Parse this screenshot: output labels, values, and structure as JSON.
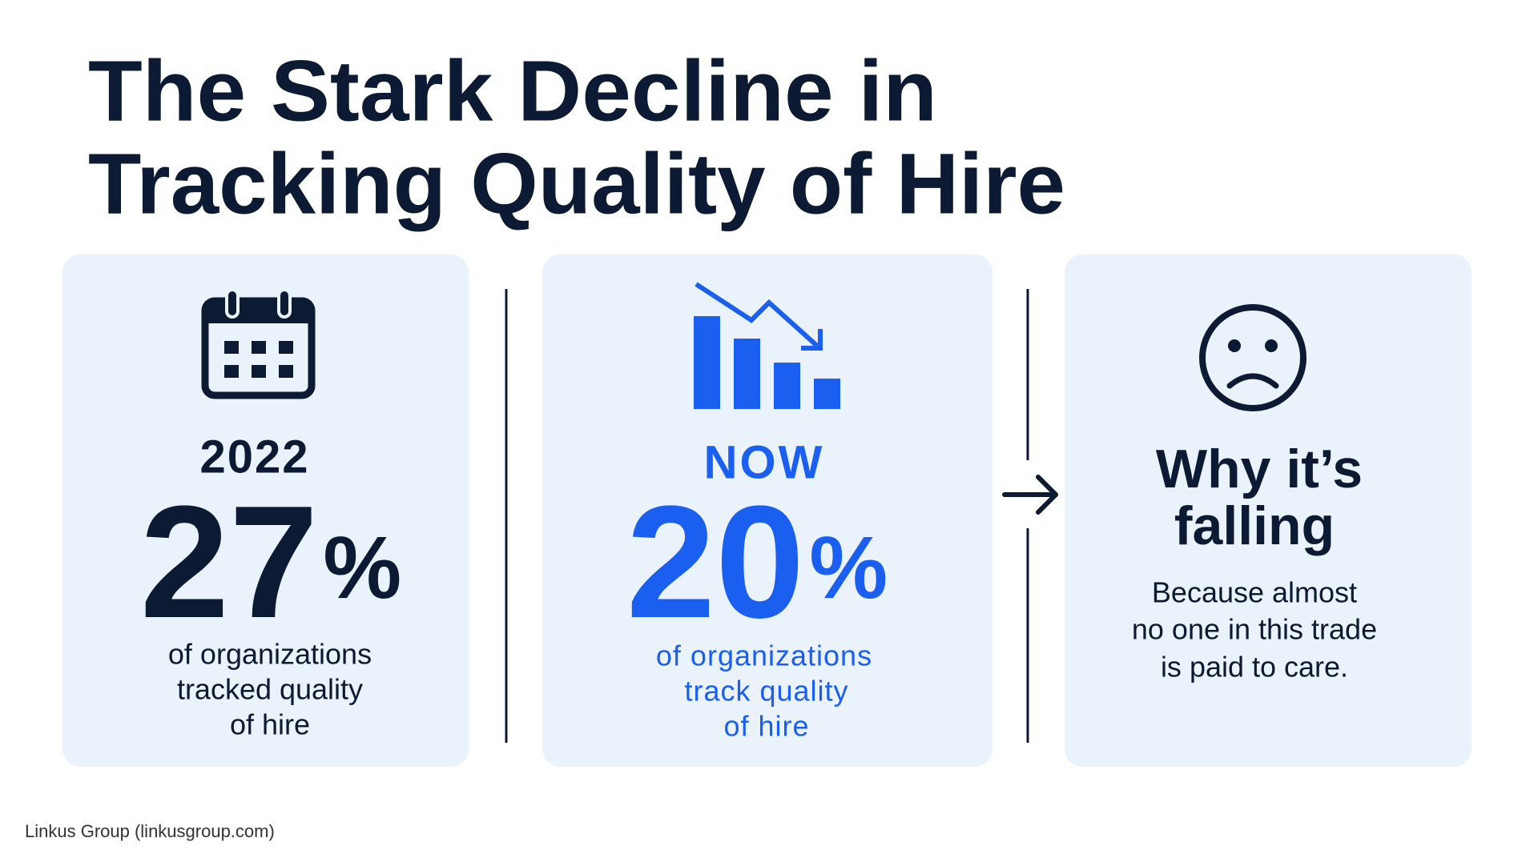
{
  "header": {
    "title_lines": [
      "The Stark Decline in",
      "Tracking Quality of Hire"
    ]
  },
  "cards": [
    {
      "label": "2022",
      "value": "27",
      "unit": "%",
      "description_lines": [
        "of organizations",
        "tracked quality",
        "of hire"
      ]
    },
    {
      "label": "NOW",
      "value": "20",
      "unit": "%",
      "description_lines": [
        "of organizations",
        "track quality",
        "of hire"
      ]
    },
    {
      "heading_lines": [
        "Why it’s",
        "falling"
      ],
      "description_lines": [
        "Because almost",
        "no one in this trade",
        "is paid to care."
      ]
    }
  ],
  "footer": {
    "source": "Linkus Group (linkusgroup.com)"
  }
}
